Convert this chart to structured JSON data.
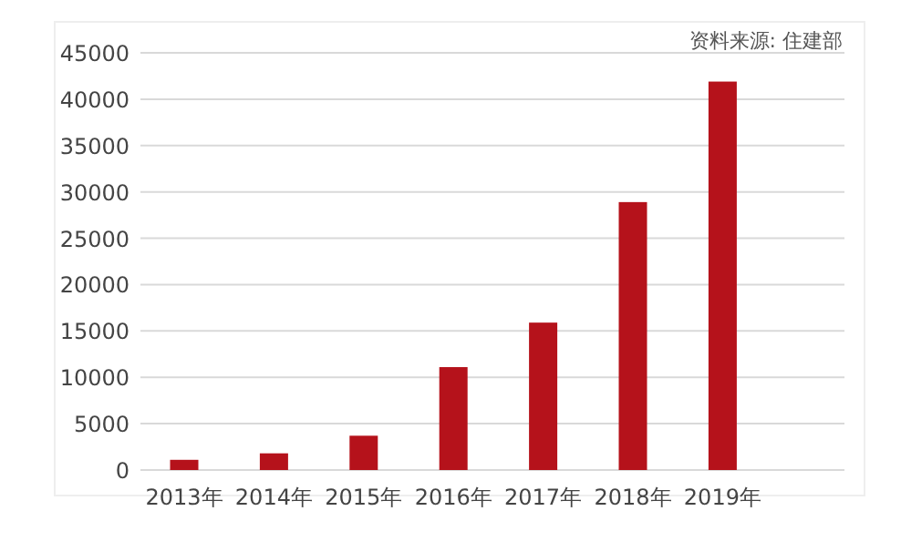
{
  "chart_data": {
    "type": "bar",
    "categories": [
      "2013年",
      "2014年",
      "2015年",
      "2016年",
      "2017年",
      "2018年",
      "2019年"
    ],
    "values": [
      1100,
      1800,
      3700,
      11100,
      15900,
      28900,
      41900
    ],
    "color": "#b5121b",
    "ylim": [
      0,
      45000
    ],
    "yticks": [
      0,
      5000,
      10000,
      15000,
      20000,
      25000,
      30000,
      35000,
      40000,
      45000
    ],
    "grid": "y",
    "annotations": [
      "资料来源: 住建部"
    ]
  }
}
